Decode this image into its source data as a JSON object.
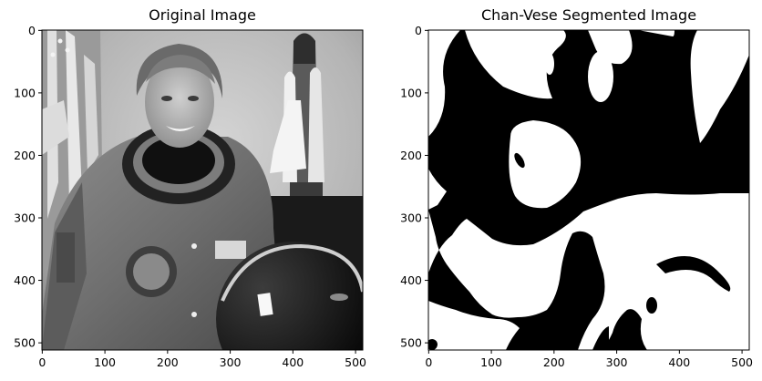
{
  "panels": [
    {
      "title": "Original Image",
      "x_ticks": [
        "0",
        "100",
        "200",
        "300",
        "400",
        "500"
      ],
      "y_ticks": [
        "0",
        "100",
        "200",
        "300",
        "400",
        "500"
      ]
    },
    {
      "title": "Chan-Vese Segmented Image",
      "x_ticks": [
        "0",
        "100",
        "200",
        "300",
        "400",
        "500"
      ],
      "y_ticks": [
        "0",
        "100",
        "200",
        "300",
        "400",
        "500"
      ]
    }
  ],
  "image_extent": [
    0,
    512
  ],
  "colors": {
    "background": "#ffffff",
    "axis": "#000000",
    "segment_on": "#ffffff",
    "segment_off": "#000000"
  },
  "icons": [
    "flag-illustration",
    "space-shuttle-illustration",
    "astronaut-portrait",
    "helmet-illustration"
  ]
}
